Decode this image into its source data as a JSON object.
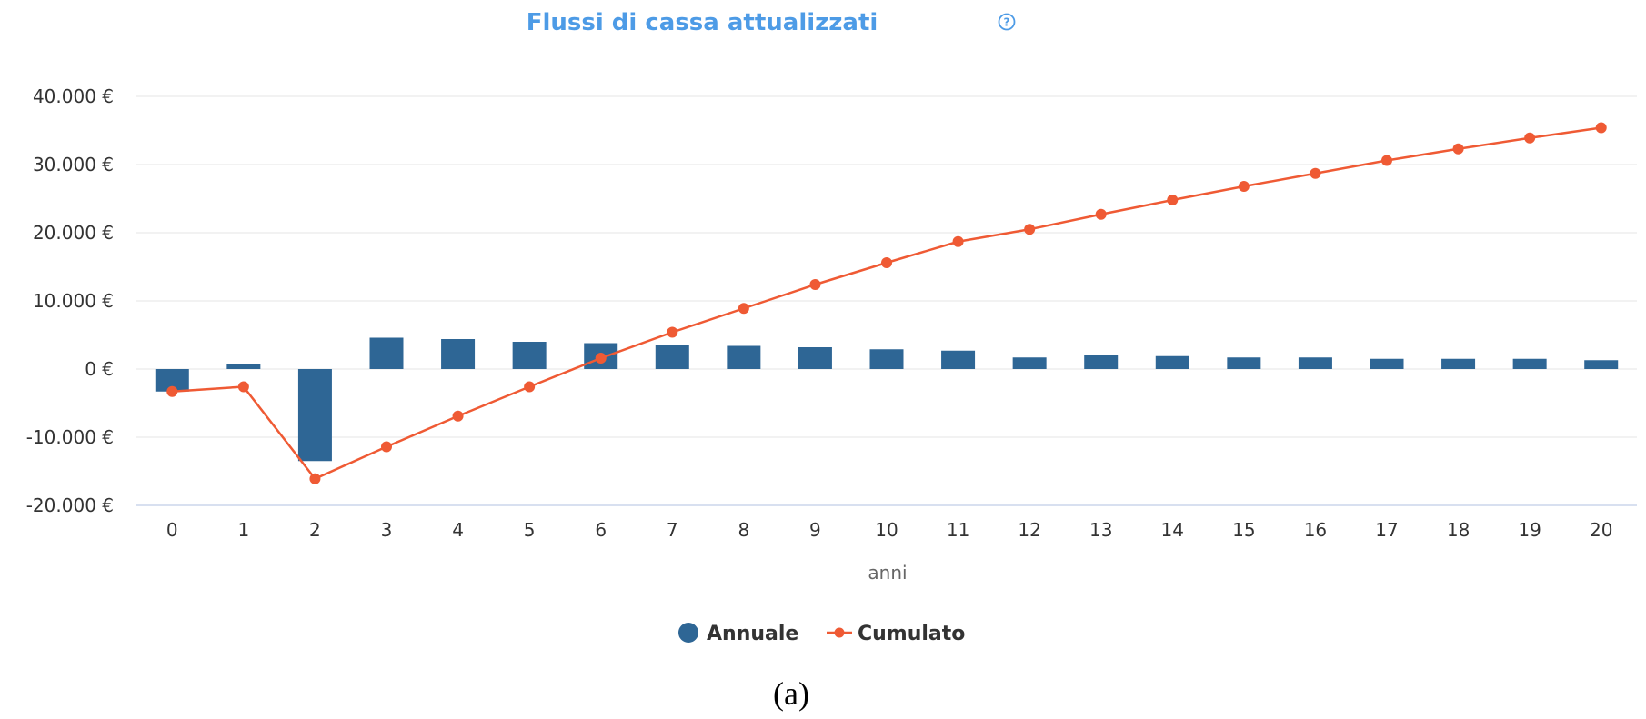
{
  "chart_data": {
    "type": "bar",
    "title": "Flussi di cassa attualizzati",
    "title_icon": "help-circle-icon",
    "xlabel": "anni",
    "ylabel": "",
    "categories": [
      "0",
      "1",
      "2",
      "3",
      "4",
      "5",
      "6",
      "7",
      "8",
      "9",
      "10",
      "11",
      "12",
      "13",
      "14",
      "15",
      "16",
      "17",
      "18",
      "19",
      "20"
    ],
    "ylim": [
      -20000,
      40000
    ],
    "yticks": [
      -20000,
      -10000,
      0,
      10000,
      20000,
      30000,
      40000
    ],
    "ytick_labels": [
      "-20.000 €",
      "-10.000 €",
      "0 €",
      "10.000 €",
      "20.000 €",
      "30.000 €",
      "40.000 €"
    ],
    "grid": true,
    "legend": "bottom-center",
    "series": [
      {
        "name": "Annuale",
        "type": "bar",
        "color": "#2e6695",
        "values": [
          -3300,
          700,
          -13500,
          4600,
          4400,
          4000,
          3800,
          3600,
          3400,
          3200,
          2900,
          2700,
          1700,
          2100,
          1900,
          1700,
          1700,
          1500,
          1500,
          1500,
          1300
        ]
      },
      {
        "name": "Cumulato",
        "type": "line",
        "color": "#ef5a34",
        "values": [
          -3300,
          -2600,
          -16100,
          -11400,
          -6900,
          -2600,
          1600,
          5400,
          8900,
          12400,
          15600,
          18700,
          20500,
          22700,
          24800,
          26800,
          28700,
          30600,
          32300,
          33900,
          35400
        ]
      }
    ]
  },
  "colors": {
    "title": "#4d9be6",
    "grid": "#e6e6e6",
    "axis": "#ccd6eb"
  },
  "caption": "(a)"
}
